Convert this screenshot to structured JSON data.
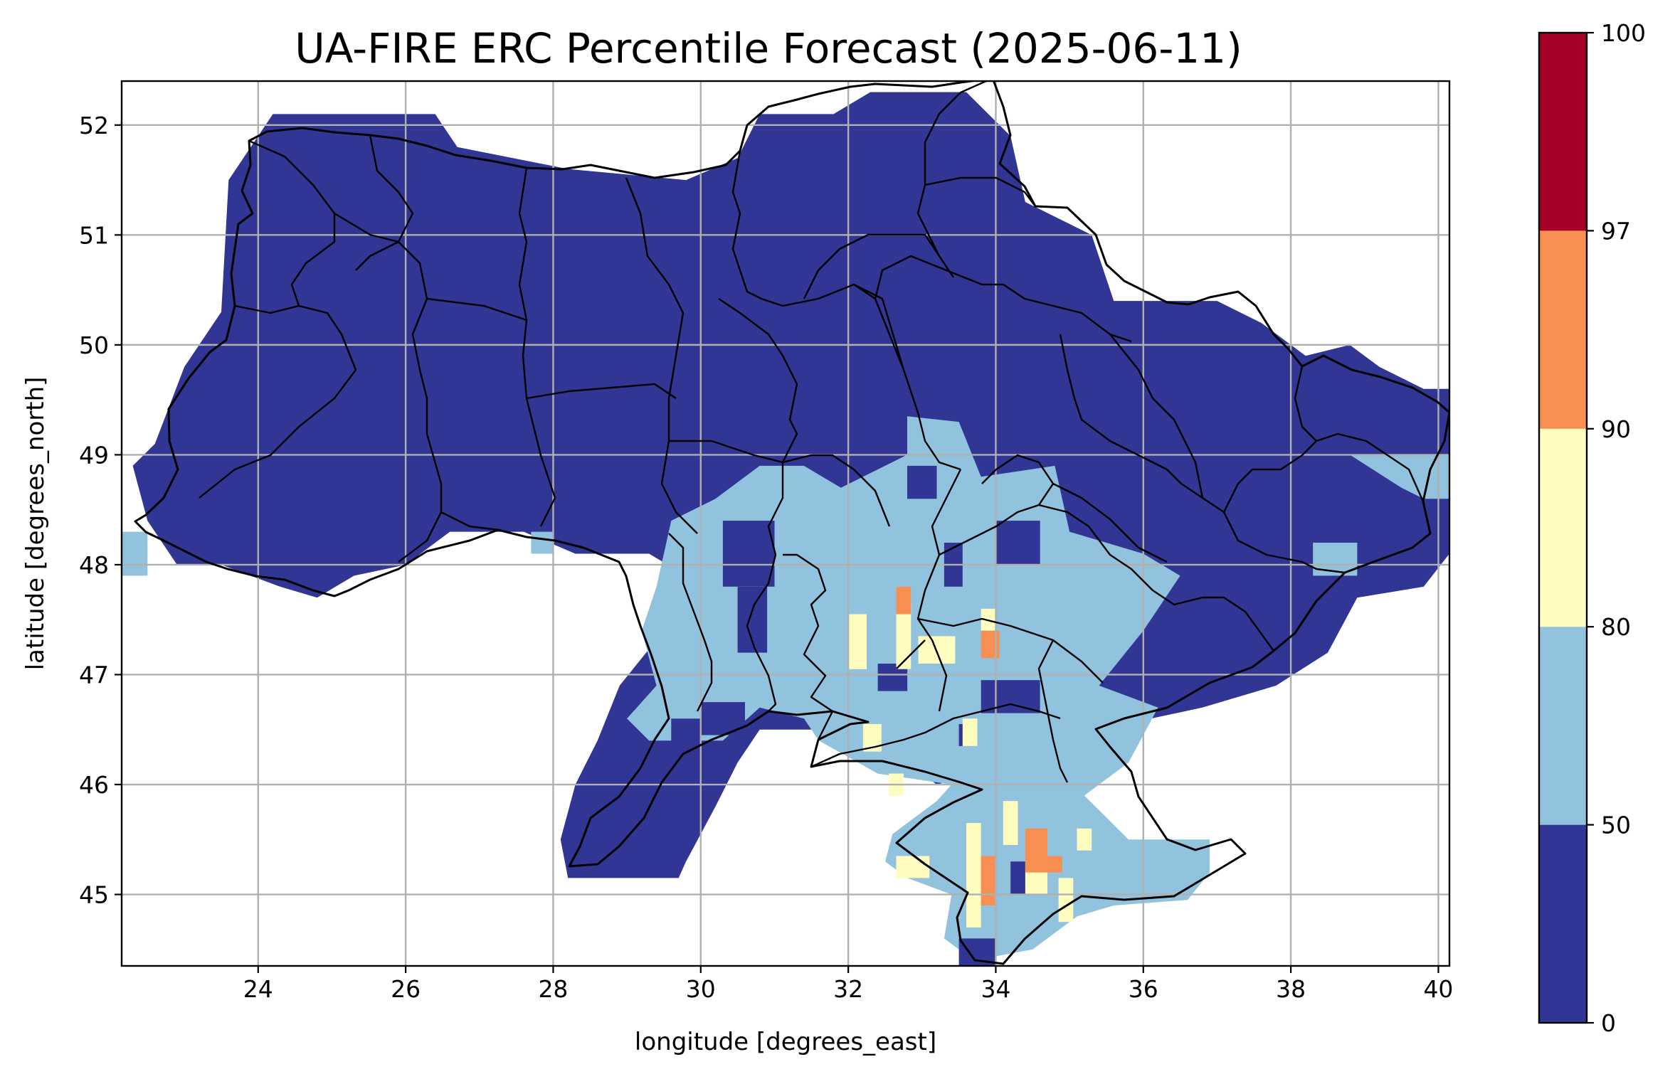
{
  "title": "UA-FIRE ERC Percentile Forecast (2025-06-11)",
  "xlabel": "longitude [degrees_east]",
  "ylabel": "latitude [degrees_north]",
  "extent": {
    "lon": [
      22.15,
      40.15
    ],
    "lat": [
      44.35,
      52.4
    ]
  },
  "x_ticks": [
    {
      "value": 24,
      "label": "24"
    },
    {
      "value": 26,
      "label": "26"
    },
    {
      "value": 28,
      "label": "28"
    },
    {
      "value": 30,
      "label": "30"
    },
    {
      "value": 32,
      "label": "32"
    },
    {
      "value": 34,
      "label": "34"
    },
    {
      "value": 36,
      "label": "36"
    },
    {
      "value": 38,
      "label": "38"
    },
    {
      "value": 40,
      "label": "40"
    }
  ],
  "y_ticks": [
    {
      "value": 45,
      "label": "45"
    },
    {
      "value": 46,
      "label": "46"
    },
    {
      "value": 47,
      "label": "47"
    },
    {
      "value": 48,
      "label": "48"
    },
    {
      "value": 49,
      "label": "49"
    },
    {
      "value": 50,
      "label": "50"
    },
    {
      "value": 51,
      "label": "51"
    },
    {
      "value": 52,
      "label": "52"
    }
  ],
  "grid": true,
  "colorbar": {
    "bounds": [
      0,
      50,
      80,
      90,
      97,
      100
    ],
    "labels": [
      "0",
      "50",
      "80",
      "90",
      "97",
      "100"
    ],
    "colors": [
      "#313695",
      "#91c3de",
      "#fefdbf",
      "#f78f52",
      "#a50026"
    ]
  },
  "chart_data": {
    "type": "heatmap",
    "title": "UA-FIRE ERC Percentile Forecast (2025-06-11)",
    "xlabel": "longitude [degrees_east]",
    "ylabel": "latitude [degrees_north]",
    "xlim": [
      22.15,
      40.15
    ],
    "ylim": [
      44.35,
      52.4
    ],
    "grid": true,
    "cell_size_deg": 0.25,
    "value_classes": [
      "0-50",
      "50-80",
      "80-90",
      "90-97",
      "97-100"
    ],
    "regions": {
      "below_50": "almost all of Ukraine (north, west, center, east, Odesa coast)",
      "50_80": "south-central steppe and Crimea (approx. 30-37E, 44.5-49.3N)",
      "80_90": "scattered cells near 32.0-33.5E 47.0-47.6N, 32.3E 46.5N, 33.5-35.3E 44.7-45.6N",
      "90_97": "cells near 32.8E 47.7N, 34.0E 47.3N, 34.6E 45.3N, 34.0E 45.0N",
      "97_100": "none"
    },
    "shapes_lonlat": {
      "dark": [
        [
          [
            22.3,
            48.9
          ],
          [
            22.6,
            49.1
          ],
          [
            23.0,
            49.8
          ],
          [
            23.5,
            50.3
          ],
          [
            23.6,
            51.5
          ],
          [
            24.0,
            51.9
          ],
          [
            24.2,
            52.1
          ],
          [
            26.4,
            52.1
          ],
          [
            26.7,
            51.8
          ],
          [
            28.2,
            51.6
          ],
          [
            29.8,
            51.5
          ],
          [
            30.5,
            51.7
          ],
          [
            30.8,
            52.1
          ],
          [
            31.8,
            52.1
          ],
          [
            32.3,
            52.3
          ],
          [
            33.6,
            52.3
          ],
          [
            34.2,
            51.9
          ],
          [
            34.4,
            51.3
          ],
          [
            35.3,
            51.0
          ],
          [
            35.6,
            50.4
          ],
          [
            36.2,
            50.4
          ],
          [
            37.0,
            50.4
          ],
          [
            37.6,
            50.2
          ],
          [
            38.2,
            49.9
          ],
          [
            38.8,
            50.0
          ],
          [
            39.2,
            49.8
          ],
          [
            39.8,
            49.6
          ],
          [
            40.15,
            49.6
          ],
          [
            40.15,
            48.1
          ],
          [
            39.8,
            47.8
          ],
          [
            38.9,
            47.7
          ],
          [
            38.5,
            47.2
          ],
          [
            37.8,
            46.9
          ],
          [
            36.8,
            46.7
          ],
          [
            35.4,
            46.5
          ],
          [
            34.8,
            46.2
          ],
          [
            33.8,
            46.1
          ],
          [
            33.2,
            46.0
          ],
          [
            32.8,
            46.2
          ],
          [
            31.9,
            46.4
          ],
          [
            31.5,
            46.5
          ],
          [
            30.8,
            46.5
          ],
          [
            30.5,
            46.2
          ],
          [
            30.2,
            45.8
          ],
          [
            29.8,
            45.3
          ],
          [
            29.7,
            45.15
          ],
          [
            28.2,
            45.15
          ],
          [
            28.1,
            45.5
          ],
          [
            28.3,
            46.0
          ],
          [
            28.6,
            46.4
          ],
          [
            28.9,
            46.9
          ],
          [
            29.5,
            47.4
          ],
          [
            29.8,
            47.9
          ],
          [
            29.3,
            48.1
          ],
          [
            28.3,
            48.1
          ],
          [
            27.6,
            48.3
          ],
          [
            26.6,
            48.3
          ],
          [
            26.0,
            48.0
          ],
          [
            25.3,
            47.9
          ],
          [
            24.8,
            47.7
          ],
          [
            24.3,
            47.8
          ],
          [
            23.5,
            48.0
          ],
          [
            22.9,
            48.0
          ],
          [
            22.5,
            48.4
          ]
        ]
      ],
      "light": [
        [
          [
            31.9,
            48.7
          ],
          [
            32.8,
            49.0
          ],
          [
            32.8,
            49.35
          ],
          [
            33.5,
            49.3
          ],
          [
            33.8,
            48.8
          ],
          [
            34.8,
            48.9
          ],
          [
            35.0,
            48.3
          ],
          [
            36.0,
            48.1
          ],
          [
            36.5,
            47.9
          ],
          [
            36.0,
            47.4
          ],
          [
            35.4,
            46.9
          ],
          [
            36.2,
            46.7
          ],
          [
            35.8,
            46.2
          ],
          [
            35.2,
            45.9
          ],
          [
            35.8,
            45.5
          ],
          [
            36.9,
            45.5
          ],
          [
            36.9,
            45.2
          ],
          [
            36.6,
            44.95
          ],
          [
            35.6,
            44.9
          ],
          [
            35.1,
            44.8
          ],
          [
            34.5,
            44.5
          ],
          [
            33.7,
            44.4
          ],
          [
            33.3,
            44.6
          ],
          [
            33.4,
            45.0
          ],
          [
            32.8,
            45.15
          ],
          [
            32.5,
            45.3
          ],
          [
            32.6,
            45.55
          ],
          [
            33.2,
            45.85
          ],
          [
            33.4,
            46.0
          ],
          [
            32.4,
            46.1
          ],
          [
            31.6,
            46.4
          ],
          [
            31.4,
            46.6
          ],
          [
            30.8,
            46.7
          ],
          [
            30.3,
            46.4
          ],
          [
            29.3,
            46.4
          ],
          [
            29.0,
            46.6
          ],
          [
            29.4,
            46.9
          ],
          [
            29.2,
            47.4
          ],
          [
            29.4,
            47.8
          ],
          [
            29.6,
            48.4
          ],
          [
            30.2,
            48.6
          ],
          [
            30.8,
            48.9
          ],
          [
            31.4,
            48.9
          ]
        ],
        [
          [
            38.8,
            49.0
          ],
          [
            40.15,
            49.0
          ],
          [
            40.15,
            48.6
          ],
          [
            39.8,
            48.6
          ],
          [
            39.5,
            48.7
          ]
        ],
        [
          [
            38.3,
            48.2
          ],
          [
            38.9,
            48.2
          ],
          [
            38.9,
            47.9
          ],
          [
            38.3,
            47.9
          ]
        ],
        [
          [
            22.15,
            48.3
          ],
          [
            22.5,
            48.3
          ],
          [
            22.5,
            47.9
          ],
          [
            22.15,
            47.9
          ]
        ],
        [
          [
            27.7,
            48.3
          ],
          [
            28.0,
            48.3
          ],
          [
            28.0,
            48.1
          ],
          [
            27.7,
            48.1
          ]
        ]
      ]
    },
    "blocks_deg": {
      "dark_in_light": [
        [
          30.5,
          30.9,
          47.2,
          47.8
        ],
        [
          30.0,
          30.6,
          46.45,
          46.75
        ],
        [
          29.6,
          30.0,
          46.2,
          46.6
        ],
        [
          33.8,
          34.6,
          46.65,
          46.95
        ],
        [
          33.5,
          33.75,
          46.35,
          46.55
        ],
        [
          34.2,
          34.7,
          45.0,
          45.3
        ],
        [
          33.5,
          34.0,
          44.35,
          44.6
        ],
        [
          33.3,
          33.55,
          47.8,
          48.2
        ],
        [
          34.0,
          34.6,
          48.0,
          48.4
        ],
        [
          30.3,
          31.0,
          47.8,
          48.4
        ],
        [
          32.8,
          33.2,
          48.6,
          48.9
        ],
        [
          32.4,
          32.8,
          46.85,
          47.1
        ]
      ],
      "pale": [
        [
          32.0,
          32.25,
          47.05,
          47.55
        ],
        [
          32.65,
          32.85,
          47.05,
          47.65
        ],
        [
          32.95,
          33.45,
          47.1,
          47.35
        ],
        [
          33.8,
          34.0,
          47.4,
          47.6
        ],
        [
          32.2,
          32.45,
          46.3,
          46.55
        ],
        [
          33.55,
          33.75,
          46.35,
          46.6
        ],
        [
          32.55,
          32.75,
          45.9,
          46.1
        ],
        [
          32.65,
          33.1,
          45.15,
          45.35
        ],
        [
          33.6,
          33.8,
          44.7,
          45.65
        ],
        [
          34.1,
          34.3,
          45.45,
          45.85
        ],
        [
          34.85,
          35.05,
          44.75,
          45.15
        ],
        [
          35.1,
          35.3,
          45.4,
          45.6
        ],
        [
          34.4,
          34.7,
          45.0,
          45.3
        ]
      ],
      "orange": [
        [
          32.65,
          32.85,
          47.55,
          47.8
        ],
        [
          33.8,
          34.05,
          47.15,
          47.4
        ],
        [
          34.4,
          34.7,
          45.2,
          45.6
        ],
        [
          34.7,
          34.9,
          45.2,
          45.35
        ],
        [
          33.8,
          34.0,
          44.9,
          45.35
        ]
      ]
    }
  }
}
